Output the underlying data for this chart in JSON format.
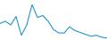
{
  "x": [
    0,
    1,
    2,
    3,
    4,
    5,
    6,
    7,
    8,
    9,
    10,
    11,
    12,
    13,
    14,
    15,
    16,
    17,
    18,
    19,
    20
  ],
  "y": [
    55,
    60,
    52,
    70,
    30,
    52,
    95,
    68,
    72,
    60,
    42,
    35,
    35,
    48,
    40,
    36,
    32,
    28,
    30,
    26,
    24
  ],
  "line_color": "#2196c8",
  "linewidth": 0.8,
  "background_color": "#ffffff",
  "ylim": [
    20,
    105
  ],
  "xlim": [
    0,
    20
  ]
}
